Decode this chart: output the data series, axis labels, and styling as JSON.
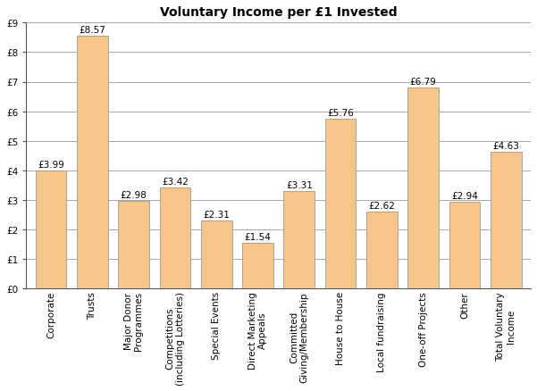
{
  "title": "Voluntary Income per £1 Invested",
  "categories": [
    "Corporate",
    "Trusts",
    "Major Donor\nProgrammes",
    "Competitions\n(including Lotteries)",
    "Special Events",
    "Direct Marketing\nAppeals",
    "Committed\nGiving/Membership",
    "House to House",
    "Local fundraising",
    "One-off Projects",
    "Other",
    "Total Voluntary\nIncome"
  ],
  "values": [
    3.99,
    8.57,
    2.98,
    3.42,
    2.31,
    1.54,
    3.31,
    5.76,
    2.62,
    6.79,
    2.94,
    4.63
  ],
  "bar_color": "#F5C58A",
  "bar_edgecolor": "#999999",
  "ylim": [
    0,
    9
  ],
  "yticks": [
    0,
    1,
    2,
    3,
    4,
    5,
    6,
    7,
    8,
    9
  ],
  "ytick_labels": [
    "£0",
    "£1",
    "£2",
    "£3",
    "£4",
    "£5",
    "£6",
    "£7",
    "£8",
    "£9"
  ],
  "title_fontsize": 10,
  "label_fontsize": 7.5,
  "value_fontsize": 7.5,
  "background_color": "#FFFFFF",
  "grid_color": "#999999"
}
